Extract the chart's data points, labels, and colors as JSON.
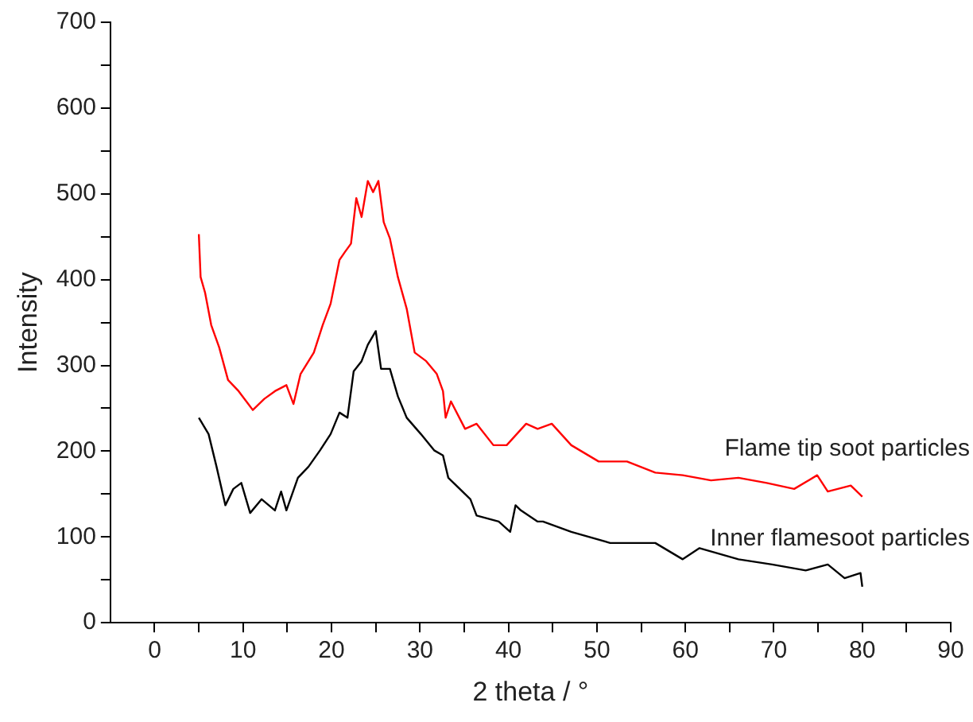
{
  "chart_data": {
    "type": "line",
    "xlabel": "2 theta / °",
    "ylabel": "Intensity",
    "xlim": [
      -5,
      90
    ],
    "ylim": [
      0,
      700
    ],
    "xticks": [
      0,
      {
        "value": 5,
        "label": null
      },
      10,
      {
        "value": 15,
        "label": null
      },
      20,
      {
        "value": 25,
        "label": null
      },
      30,
      {
        "value": 35,
        "label": null
      },
      40,
      {
        "value": 45,
        "label": null
      },
      50,
      {
        "value": 55,
        "label": null
      },
      60,
      {
        "value": 65,
        "label": null
      },
      70,
      {
        "value": 75,
        "label": null
      },
      80,
      {
        "value": 85,
        "label": null
      },
      90
    ],
    "yticks": [
      0,
      {
        "value": 50,
        "label": null
      },
      100,
      {
        "value": 150,
        "label": null
      },
      200,
      {
        "value": 250,
        "label": null
      },
      300,
      {
        "value": 350,
        "label": null
      },
      400,
      {
        "value": 450,
        "label": null
      },
      500,
      {
        "value": 550,
        "label": null
      },
      600,
      {
        "value": 650,
        "label": null
      },
      700
    ],
    "grid": false,
    "legend": false,
    "marker": "none",
    "line_style": "solid",
    "series": [
      {
        "name": "Flame tip soot particles",
        "color": "#ff0000",
        "x": [
          5,
          5.2,
          5.7,
          6.4,
          7.3,
          8.3,
          9.5,
          11.1,
          12.4,
          13.6,
          14.9,
          15.7,
          16.5,
          18,
          19,
          19.9,
          20.9,
          21.5,
          22.2,
          22.8,
          23.4,
          24.1,
          24.7,
          25.3,
          25.9,
          26.6,
          27.5,
          28.5,
          29.4,
          30.7,
          31.9,
          32.6,
          32.9,
          33.5,
          35.1,
          36.4,
          38.3,
          39.8,
          42,
          43.3,
          44.9,
          47.1,
          50.2,
          53.4,
          56.6,
          59.7,
          62.9,
          66,
          69.2,
          72.3,
          74.9,
          76.1,
          78.7,
          80
        ],
        "values": [
          453,
          403,
          385,
          347,
          321,
          283,
          270,
          248,
          261,
          270,
          277,
          255,
          290,
          315,
          347,
          372,
          423,
          432,
          442,
          495,
          473,
          515,
          502,
          515,
          467,
          448,
          403,
          366,
          315,
          305,
          290,
          270,
          239,
          258,
          226,
          232,
          207,
          207,
          232,
          226,
          232,
          207,
          188,
          188,
          175,
          172,
          166,
          169,
          163,
          156,
          172,
          153,
          160,
          147
        ]
      },
      {
        "name": "Inner flamesoot particles",
        "color": "#000000",
        "x": [
          5,
          6.1,
          7,
          8,
          8.9,
          9.8,
          10.8,
          12.1,
          13.6,
          14.3,
          14.9,
          16.2,
          17.4,
          18.7,
          19.9,
          20.9,
          21.8,
          22.5,
          23.4,
          24.1,
          25,
          25.6,
          26.6,
          27.5,
          28.5,
          30.1,
          31.6,
          32.6,
          33.2,
          34.5,
          35.7,
          36.4,
          38.9,
          40.2,
          40.8,
          41.4,
          43.3,
          43.9,
          47.1,
          51.5,
          56.6,
          59.7,
          61.6,
          66,
          69.8,
          73.6,
          76.1,
          78,
          79.8,
          80
        ],
        "values": [
          239,
          220,
          182,
          137,
          156,
          163,
          128,
          144,
          131,
          153,
          131,
          169,
          182,
          201,
          220,
          245,
          239,
          293,
          305,
          324,
          340,
          296,
          296,
          264,
          239,
          220,
          201,
          195,
          169,
          156,
          144,
          125,
          118,
          106,
          137,
          131,
          118,
          118,
          106,
          93,
          93,
          74,
          87,
          74,
          68,
          61,
          68,
          52,
          58,
          42
        ]
      }
    ]
  }
}
